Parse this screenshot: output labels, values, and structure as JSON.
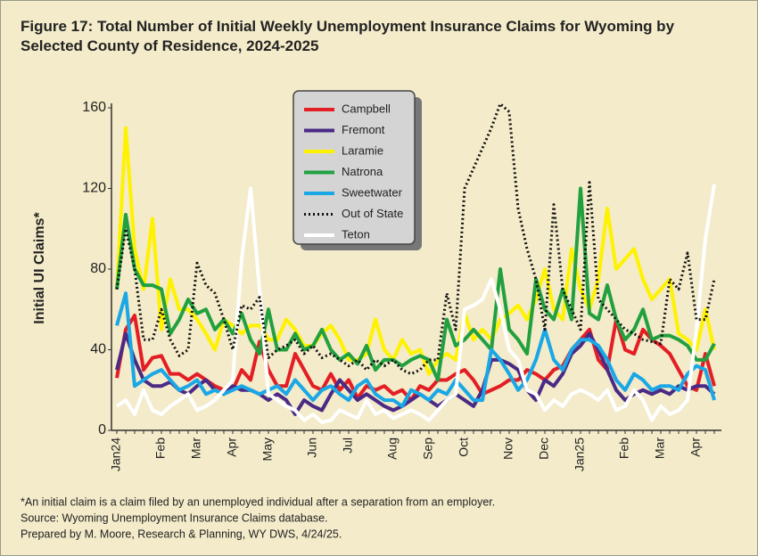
{
  "chart_data": {
    "type": "line",
    "title": "Figure 17: Total Number of Initial Weekly Unemployment Insurance Claims for Wyoming by Selected County of Residence, 2024-2025",
    "y_label": "Initial UI Claims*",
    "notes": [
      "*An initial claim is a claim filed by an unemployed individual after a separation from an employer.",
      "Source: Wyoming Unemployment Insurance Claims database.",
      "Prepared by M. Moore, Research & Planning, WY DWS, 4/24/25."
    ],
    "categories": [
      "Jan24",
      null,
      null,
      null,
      null,
      "Feb",
      null,
      null,
      null,
      "Mar",
      null,
      null,
      null,
      "Apr",
      null,
      null,
      null,
      "May",
      null,
      null,
      null,
      null,
      "Jun",
      null,
      null,
      null,
      "Jul",
      null,
      null,
      null,
      null,
      "Aug",
      null,
      null,
      null,
      "Sep",
      null,
      null,
      null,
      "Oct",
      null,
      null,
      null,
      null,
      "Nov",
      null,
      null,
      null,
      "Dec",
      null,
      null,
      null,
      "Jan25",
      null,
      null,
      null,
      null,
      "Feb",
      null,
      null,
      null,
      "Mar",
      null,
      null,
      null,
      "Apr",
      null,
      null
    ],
    "ylim": [
      0,
      160
    ],
    "yticks": [
      0,
      40,
      80,
      120,
      160
    ],
    "grid": false,
    "series": [
      {
        "name": "Campbell",
        "color": "#e31e24",
        "values": [
          26,
          50,
          57,
          30,
          36,
          37,
          28,
          28,
          25,
          28,
          25,
          22,
          20,
          20,
          30,
          25,
          44,
          30,
          22,
          22,
          38,
          30,
          22,
          20,
          28,
          20,
          25,
          16,
          22,
          20,
          22,
          18,
          20,
          15,
          22,
          20,
          25,
          25,
          28,
          30,
          25,
          18,
          20,
          22,
          25,
          25,
          30,
          28,
          25,
          30,
          32,
          40,
          45,
          50,
          35,
          30,
          55,
          40,
          38,
          50,
          45,
          42,
          38,
          30,
          22,
          20,
          38,
          22
        ]
      },
      {
        "name": "Fremont",
        "color": "#4b2a86",
        "values": [
          30,
          48,
          35,
          25,
          22,
          22,
          24,
          20,
          18,
          22,
          25,
          20,
          18,
          22,
          20,
          20,
          18,
          15,
          18,
          15,
          8,
          15,
          12,
          10,
          18,
          25,
          20,
          15,
          18,
          15,
          12,
          10,
          12,
          15,
          18,
          15,
          12,
          15,
          18,
          15,
          12,
          20,
          35,
          35,
          33,
          30,
          20,
          15,
          25,
          22,
          28,
          38,
          42,
          48,
          40,
          30,
          20,
          15,
          18,
          20,
          18,
          20,
          18,
          22,
          20,
          22,
          22,
          18
        ]
      },
      {
        "name": "Laramie",
        "color": "#fff200",
        "values": [
          70,
          150,
          90,
          70,
          105,
          50,
          75,
          60,
          60,
          55,
          48,
          40,
          55,
          52,
          48,
          52,
          52,
          45,
          45,
          55,
          50,
          42,
          42,
          48,
          52,
          45,
          35,
          35,
          38,
          55,
          40,
          35,
          45,
          38,
          40,
          28,
          35,
          38,
          35,
          58,
          45,
          50,
          45,
          55,
          58,
          62,
          55,
          65,
          80,
          60,
          55,
          90,
          70,
          60,
          75,
          110,
          80,
          85,
          90,
          75,
          65,
          70,
          75,
          48,
          45,
          40,
          60,
          40
        ]
      },
      {
        "name": "Natrona",
        "color": "#22a040",
        "values": [
          70,
          107,
          80,
          72,
          72,
          70,
          48,
          55,
          65,
          58,
          60,
          50,
          55,
          48,
          58,
          45,
          38,
          60,
          40,
          40,
          48,
          40,
          42,
          50,
          40,
          35,
          38,
          33,
          42,
          30,
          35,
          35,
          32,
          35,
          37,
          35,
          25,
          55,
          42,
          45,
          50,
          45,
          40,
          80,
          50,
          45,
          38,
          75,
          60,
          55,
          70,
          55,
          120,
          58,
          55,
          72,
          55,
          45,
          50,
          60,
          45,
          47,
          47,
          45,
          42,
          35,
          35,
          43
        ]
      },
      {
        "name": "Sweetwater",
        "color": "#1aa7e6",
        "values": [
          52,
          68,
          22,
          25,
          28,
          30,
          25,
          20,
          22,
          25,
          18,
          20,
          18,
          20,
          22,
          20,
          18,
          20,
          22,
          18,
          25,
          20,
          15,
          20,
          22,
          18,
          15,
          22,
          25,
          18,
          15,
          15,
          12,
          20,
          18,
          15,
          20,
          18,
          25,
          20,
          15,
          15,
          40,
          35,
          28,
          20,
          25,
          35,
          50,
          35,
          30,
          40,
          45,
          45,
          42,
          35,
          25,
          20,
          28,
          25,
          20,
          22,
          22,
          20,
          28,
          32,
          30,
          15
        ]
      },
      {
        "name": "Out of State",
        "color": "#111111",
        "style": "dotted",
        "values": [
          70,
          100,
          80,
          45,
          45,
          60,
          45,
          37,
          40,
          83,
          72,
          68,
          55,
          40,
          62,
          60,
          66,
          36,
          40,
          42,
          45,
          38,
          42,
          36,
          38,
          35,
          32,
          35,
          30,
          35,
          32,
          35,
          30,
          28,
          30,
          35,
          35,
          68,
          50,
          120,
          130,
          140,
          150,
          162,
          158,
          110,
          90,
          75,
          50,
          112,
          70,
          60,
          50,
          123,
          65,
          60,
          55,
          50,
          48,
          45,
          44,
          43,
          75,
          70,
          88,
          55,
          55,
          75
        ]
      },
      {
        "name": "Teton",
        "color": "#ffffff",
        "values": [
          12,
          15,
          8,
          20,
          10,
          8,
          12,
          15,
          18,
          10,
          12,
          15,
          20,
          25,
          85,
          120,
          70,
          18,
          15,
          12,
          10,
          5,
          8,
          4,
          5,
          10,
          8,
          6,
          15,
          8,
          10,
          6,
          8,
          10,
          8,
          5,
          10,
          15,
          18,
          60,
          62,
          65,
          75,
          60,
          40,
          35,
          20,
          18,
          10,
          15,
          12,
          18,
          20,
          18,
          15,
          20,
          10,
          12,
          20,
          15,
          5,
          12,
          8,
          10,
          15,
          50,
          95,
          122
        ]
      }
    ]
  }
}
